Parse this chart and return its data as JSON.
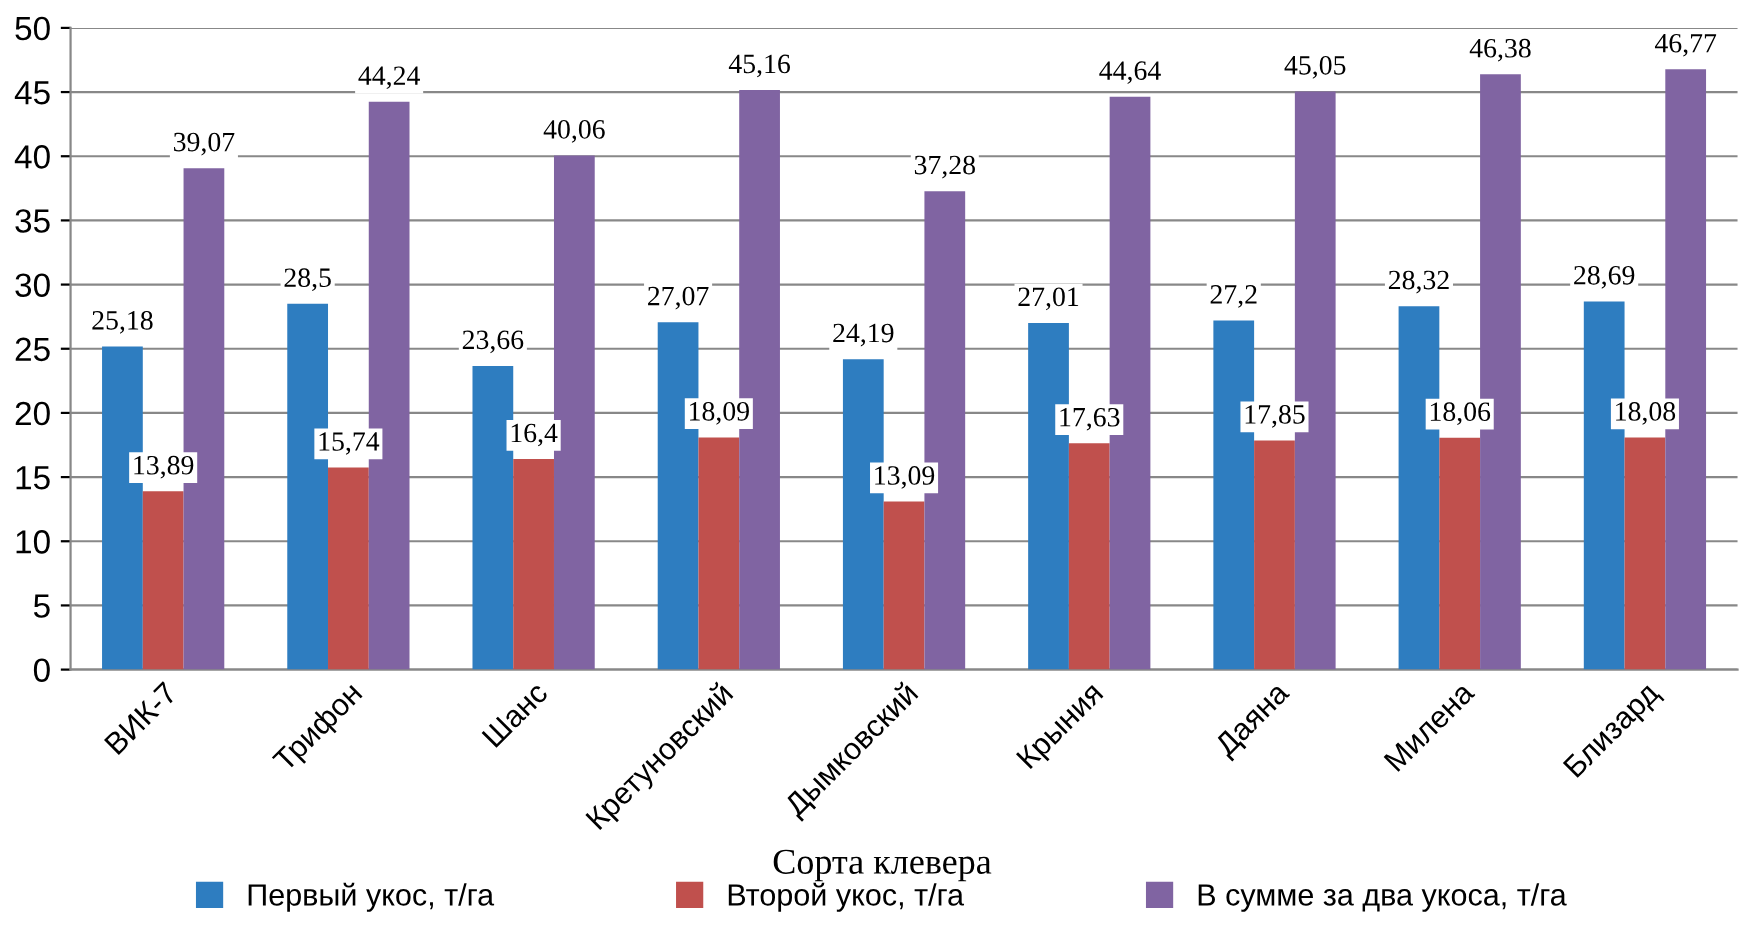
{
  "chart_data": {
    "type": "bar",
    "xlabel": "Сорта клевера",
    "categories": [
      "ВИК-7",
      "Трифон",
      "Шанс",
      "Кретуновский",
      "Дымковский",
      "Крыния",
      "Даяна",
      "Милена",
      "Близард"
    ],
    "series": [
      {
        "name": "Первый укос, т/га",
        "color": "#2e7dc0",
        "values": [
          25.18,
          28.5,
          23.66,
          27.07,
          24.19,
          27.01,
          27.2,
          28.32,
          28.69
        ],
        "value_labels": [
          "25,18",
          "28,5",
          "23,66",
          "27,07",
          "24,19",
          "27,01",
          "27,2",
          "28,32",
          "28,69"
        ]
      },
      {
        "name": "Второй укос, т/га",
        "color": "#c0504d",
        "values": [
          13.89,
          15.74,
          16.4,
          18.09,
          13.09,
          17.63,
          17.85,
          18.06,
          18.08
        ],
        "value_labels": [
          "13,89",
          "15,74",
          "16,4",
          "18,09",
          "13,09",
          "17,63",
          "17,85",
          "18,06",
          "18,08"
        ]
      },
      {
        "name": "В сумме за два укоса, т/га",
        "color": "#8064a2",
        "values": [
          39.07,
          44.24,
          40.06,
          45.16,
          37.28,
          44.64,
          45.05,
          46.38,
          46.77
        ],
        "value_labels": [
          "39,07",
          "44,24",
          "40,06",
          "45,16",
          "37,28",
          "44,64",
          "45,05",
          "46,38",
          "46,77"
        ]
      }
    ],
    "ylim": [
      0,
      50
    ],
    "yticks": [
      0,
      5,
      10,
      15,
      20,
      25,
      30,
      35,
      40,
      45,
      50
    ],
    "grid": "y",
    "legend": "bottom"
  }
}
